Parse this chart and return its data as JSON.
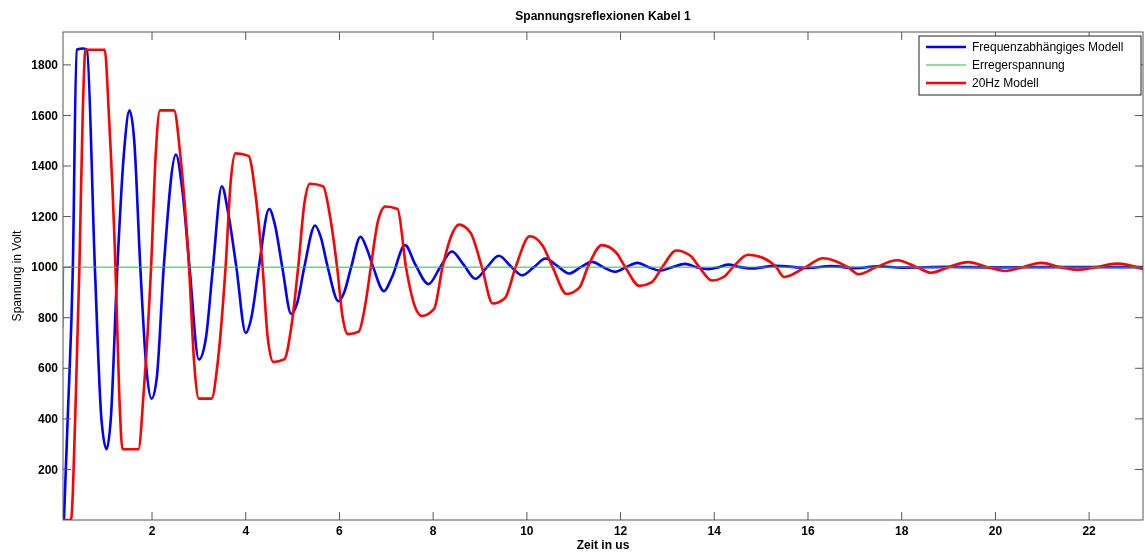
{
  "chart_data": {
    "type": "line",
    "title": "Spannungsreflexionen Kabel 1",
    "xlabel": "Zeit in us",
    "ylabel": "Spannung in Volt",
    "xlim": [
      0.1,
      23.15
    ],
    "ylim": [
      0,
      1930
    ],
    "xticks": [
      2,
      4,
      6,
      8,
      10,
      12,
      14,
      16,
      18,
      20,
      22
    ],
    "yticks": [
      200,
      400,
      600,
      800,
      1000,
      1200,
      1400,
      1600,
      1800
    ],
    "grid": false,
    "legend": "top right",
    "marker": "none",
    "line_style": "solid",
    "series": [
      {
        "name": "Frequenzabhängiges Modell",
        "color": "#0000ff",
        "x": [
          0.12,
          0.2,
          0.31,
          0.39,
          0.54,
          0.61,
          0.78,
          0.92,
          1.03,
          1.12,
          1.26,
          1.4,
          1.52,
          1.62,
          1.75,
          1.88,
          1.99,
          2.1,
          2.25,
          2.51,
          2.65,
          2.8,
          3.0,
          3.15,
          3.3,
          3.49,
          3.62,
          3.8,
          4.0,
          4.12,
          4.28,
          4.5,
          4.62,
          4.78,
          4.97,
          5.1,
          5.25,
          5.48,
          5.6,
          5.75,
          5.98,
          6.1,
          6.25,
          6.45,
          6.57,
          6.72,
          6.95,
          7.12,
          7.4,
          7.62,
          7.9,
          8.15,
          8.4,
          8.65,
          8.9,
          9.15,
          9.4,
          9.65,
          9.9,
          10.15,
          10.4,
          10.65,
          10.9,
          11.15,
          11.39,
          11.63,
          11.88,
          12.12,
          12.36,
          12.6,
          12.85,
          13.1,
          13.38,
          13.62,
          13.87,
          14.1,
          14.3,
          14.55,
          14.8,
          15.3,
          16.0,
          16.5,
          17.0,
          17.5,
          18.0,
          19.0,
          20.0,
          21.0,
          22.0,
          23.15
        ],
        "values": [
          0,
          400,
          1000,
          1860,
          1865,
          1860,
          1000,
          400,
          280,
          400,
          1000,
          1450,
          1620,
          1500,
          1000,
          600,
          480,
          560,
          1000,
          1445,
          1300,
          1000,
          635,
          720,
          1000,
          1320,
          1220,
          1000,
          740,
          800,
          1000,
          1230,
          1170,
          1000,
          815,
          860,
          1000,
          1165,
          1120,
          1000,
          865,
          900,
          1000,
          1120,
          1080,
          1000,
          905,
          960,
          1087,
          1010,
          933,
          1000,
          1062,
          1010,
          954,
          1000,
          1045,
          1005,
          968,
          1000,
          1034,
          1005,
          975,
          1000,
          1021,
          1000,
          982,
          1000,
          1017,
          1000,
          986,
          1000,
          1013,
          1000,
          992,
          1000,
          1010,
          1000,
          995,
          1005,
          997,
          1004,
          996,
          1003,
          998,
          1001,
          999,
          1000,
          1000,
          1000
        ]
      },
      {
        "name": "Erregerspannung",
        "color": "#3cb043",
        "x": [
          0.1,
          0.12,
          23.15
        ],
        "values": [
          760,
          1000,
          1000
        ]
      },
      {
        "name": "20Hz Modell",
        "color": "#ff0000",
        "x": [
          0.12,
          0.27,
          0.36,
          0.45,
          0.52,
          0.58,
          0.99,
          1.08,
          1.22,
          1.3,
          1.37,
          1.71,
          1.82,
          1.98,
          2.08,
          2.17,
          2.47,
          2.6,
          2.79,
          2.9,
          3.0,
          3.27,
          3.4,
          3.57,
          3.68,
          3.78,
          4.06,
          4.2,
          4.36,
          4.47,
          4.59,
          4.82,
          4.97,
          5.12,
          5.25,
          5.37,
          5.65,
          5.8,
          5.95,
          6.07,
          6.18,
          6.41,
          6.55,
          6.67,
          6.82,
          6.98,
          7.24,
          7.42,
          7.6,
          7.76,
          8.02,
          8.2,
          8.38,
          8.55,
          8.8,
          9.04,
          9.27,
          9.53,
          9.76,
          10.06,
          10.33,
          10.55,
          10.85,
          11.12,
          11.3,
          11.6,
          11.9,
          12.1,
          12.4,
          12.66,
          12.89,
          13.19,
          13.49,
          13.68,
          13.95,
          14.2,
          14.4,
          14.72,
          15.02,
          15.32,
          15.49,
          15.95,
          16.32,
          16.85,
          17.08,
          17.46,
          17.9,
          18.32,
          18.63,
          19.0,
          19.42,
          19.83,
          20.21,
          20.59,
          20.97,
          21.38,
          21.76,
          22.14,
          22.59,
          23.15
        ],
        "values": [
          0,
          0,
          400,
          1000,
          1600,
          1860,
          1860,
          1600,
          1000,
          500,
          280,
          280,
          500,
          1000,
          1450,
          1620,
          1620,
          1450,
          1000,
          620,
          480,
          480,
          620,
          1000,
          1340,
          1450,
          1440,
          1300,
          1000,
          720,
          625,
          635,
          760,
          1000,
          1250,
          1330,
          1320,
          1200,
          1000,
          800,
          735,
          745,
          850,
          1000,
          1180,
          1240,
          1230,
          1000,
          850,
          807,
          835,
          1000,
          1120,
          1168,
          1135,
          1000,
          856,
          877,
          1000,
          1122,
          1087,
          1000,
          894,
          919,
          1000,
          1087,
          1059,
          1000,
          926,
          940,
          1000,
          1066,
          1045,
          1000,
          947,
          961,
          1000,
          1049,
          1038,
          1000,
          961,
          1000,
          1035,
          1000,
          972,
          1000,
          1027,
          1000,
          978,
          1000,
          1020,
          1000,
          985,
          1000,
          1017,
          1000,
          989,
          1000,
          1014,
          993
        ]
      }
    ]
  }
}
